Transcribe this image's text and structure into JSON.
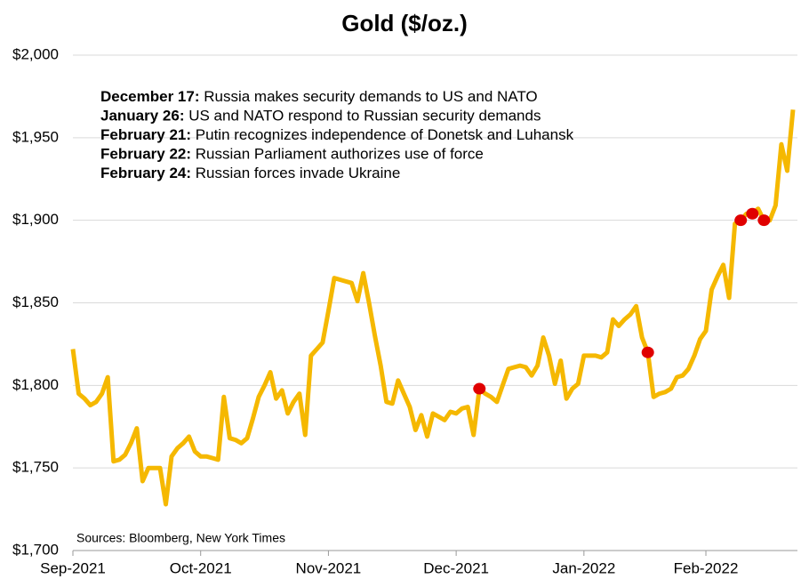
{
  "chart_data": {
    "type": "line",
    "title": "Gold ($/oz.)",
    "categories": [
      "Sep-2021",
      null,
      null,
      null,
      null,
      null,
      null,
      null,
      null,
      null,
      null,
      null,
      null,
      null,
      null,
      null,
      null,
      null,
      null,
      null,
      null,
      null,
      "Oct-2021",
      null,
      null,
      null,
      null,
      null,
      null,
      null,
      null,
      null,
      null,
      null,
      null,
      null,
      null,
      null,
      null,
      null,
      null,
      null,
      null,
      null,
      "Nov-2021",
      null,
      null,
      null,
      null,
      null,
      null,
      null,
      null,
      null,
      null,
      null,
      null,
      null,
      null,
      null,
      null,
      null,
      null,
      null,
      null,
      null,
      "Dec-2021",
      null,
      null,
      null,
      null,
      null,
      null,
      null,
      null,
      null,
      null,
      null,
      null,
      null,
      null,
      null,
      null,
      null,
      null,
      null,
      null,
      null,
      "Jan-2022",
      null,
      null,
      null,
      null,
      null,
      null,
      null,
      null,
      null,
      null,
      null,
      null,
      null,
      null,
      null,
      null,
      null,
      null,
      null,
      null,
      "Feb-2022",
      null,
      null,
      null,
      null,
      null,
      null,
      null,
      null,
      null,
      null,
      null,
      null,
      null,
      null,
      null
    ],
    "series": [
      {
        "name": "Gold",
        "color": "#f5b800",
        "style": "line",
        "values": [
          1822,
          1795,
          1792,
          1788,
          1790,
          1795,
          1805,
          1754,
          1755,
          1758,
          1765,
          1774,
          1742,
          1750,
          1750,
          1750,
          1728,
          1757,
          1762,
          1765,
          1769,
          1760,
          1757,
          1757,
          1756,
          1755,
          1793,
          1768,
          1767,
          1765,
          1768,
          1780,
          1793,
          1800,
          1808,
          1792,
          1797,
          1783,
          1790,
          1795,
          1770,
          1818,
          1822,
          1826,
          1845,
          1865,
          1864,
          1863,
          1862,
          1851,
          1868,
          1850,
          1830,
          1812,
          1790,
          1789,
          1803,
          1795,
          1787,
          1773,
          1782,
          1769,
          1783,
          1781,
          1779,
          1784,
          1783,
          1786,
          1787,
          1770,
          1798,
          1795,
          1793,
          1790,
          1800,
          1810,
          1811,
          1812,
          1811,
          1806,
          1812,
          1829,
          1818,
          1801,
          1815,
          1792,
          1798,
          1801,
          1818,
          1818,
          1818,
          1817,
          1820,
          1840,
          1836,
          1840,
          1843,
          1848,
          1829,
          1820,
          1793,
          1795,
          1796,
          1798,
          1805,
          1806,
          1810,
          1818,
          1828,
          1833,
          1858,
          1866,
          1873,
          1853,
          1898,
          1900,
          1904,
          1904,
          1907,
          1900,
          1900,
          1909,
          1946,
          1930,
          1967
        ]
      },
      {
        "color": "#e00000",
        "style": "marker",
        "values": [
          null,
          null,
          null,
          null,
          null,
          null,
          null,
          null,
          null,
          null,
          null,
          null,
          null,
          null,
          null,
          null,
          null,
          null,
          null,
          null,
          null,
          null,
          null,
          null,
          null,
          null,
          null,
          null,
          null,
          null,
          null,
          null,
          null,
          null,
          null,
          null,
          null,
          null,
          null,
          null,
          null,
          null,
          null,
          null,
          null,
          null,
          null,
          null,
          null,
          null,
          null,
          null,
          null,
          null,
          null,
          null,
          null,
          null,
          null,
          null,
          null,
          null,
          null,
          null,
          null,
          null,
          null,
          null,
          null,
          null,
          1798,
          null,
          null,
          null,
          null,
          null,
          null,
          null,
          null,
          null,
          null,
          null,
          null,
          null,
          null,
          null,
          null,
          null,
          null,
          null,
          null,
          null,
          null,
          null,
          null,
          null,
          null,
          null,
          null,
          1820,
          null,
          null,
          null,
          null,
          null,
          null,
          null,
          null,
          null,
          null,
          null,
          null,
          null,
          null,
          null,
          1900,
          null,
          1904,
          null,
          1900,
          null,
          null,
          null,
          null,
          null
        ]
      }
    ],
    "ylim": [
      1700,
      2000
    ],
    "yticks": [
      {
        "value": 1700,
        "label": "$1,700"
      },
      {
        "value": 1750,
        "label": "$1,750"
      },
      {
        "value": 1800,
        "label": "$1,800"
      },
      {
        "value": 1850,
        "label": "$1,850"
      },
      {
        "value": 1900,
        "label": "$1,900"
      },
      {
        "value": 1950,
        "label": "$1,950"
      },
      {
        "value": 2000,
        "label": "$2,000"
      }
    ],
    "grid": true,
    "annotations": [
      {
        "date": "December 17:",
        "text": " Russia makes security demands to US and NATO"
      },
      {
        "date": "January 26:",
        "text": " US and NATO respond to Russian security demands"
      },
      {
        "date": "February 21:",
        "text": " Putin recognizes independence of Donetsk and Luhansk"
      },
      {
        "date": "February 22:",
        "text": " Russian Parliament authorizes use of force"
      },
      {
        "date": "February 24:",
        "text": " Russian forces invade Ukraine"
      }
    ],
    "source": "Sources: Bloomberg, New York Times"
  }
}
